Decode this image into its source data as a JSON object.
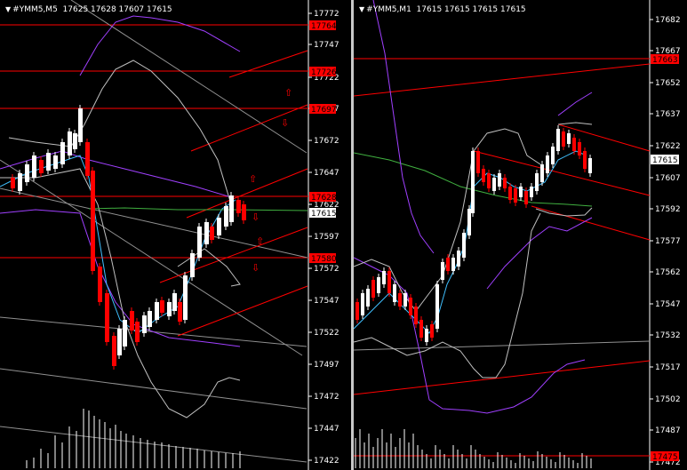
{
  "left_chart": {
    "symbol": "#YMM5,M5",
    "ohlc": "17625 17628 17607 17615",
    "price_axis": [
      "17772",
      "17747",
      "17722",
      "17697",
      "17672",
      "17647",
      "17622",
      "17597",
      "17572",
      "17547",
      "17522",
      "17497",
      "17472",
      "17447",
      "17422"
    ],
    "current_price": "17615",
    "level_labels": [
      "17764",
      "17726",
      "17697",
      "17628",
      "17580"
    ]
  },
  "right_chart": {
    "symbol": "#YMM5,M1",
    "ohlc": "17615 17615 17615 17615",
    "price_axis": [
      "17682",
      "17667",
      "17652",
      "17637",
      "17622",
      "17607",
      "17592",
      "17577",
      "17562",
      "17547",
      "17532",
      "17517",
      "17502",
      "17487",
      "17472"
    ],
    "current_price": "17615",
    "level_labels": [
      "17663",
      "17475"
    ]
  },
  "colors": {
    "bull": "#ffffff",
    "bear": "#ff0000",
    "hline": "#ff0000",
    "band_inner": "#c0c0c0",
    "band_outer": "#a040ff",
    "ma_fast": "#40c0ff",
    "ma_slow": "#40b040"
  }
}
